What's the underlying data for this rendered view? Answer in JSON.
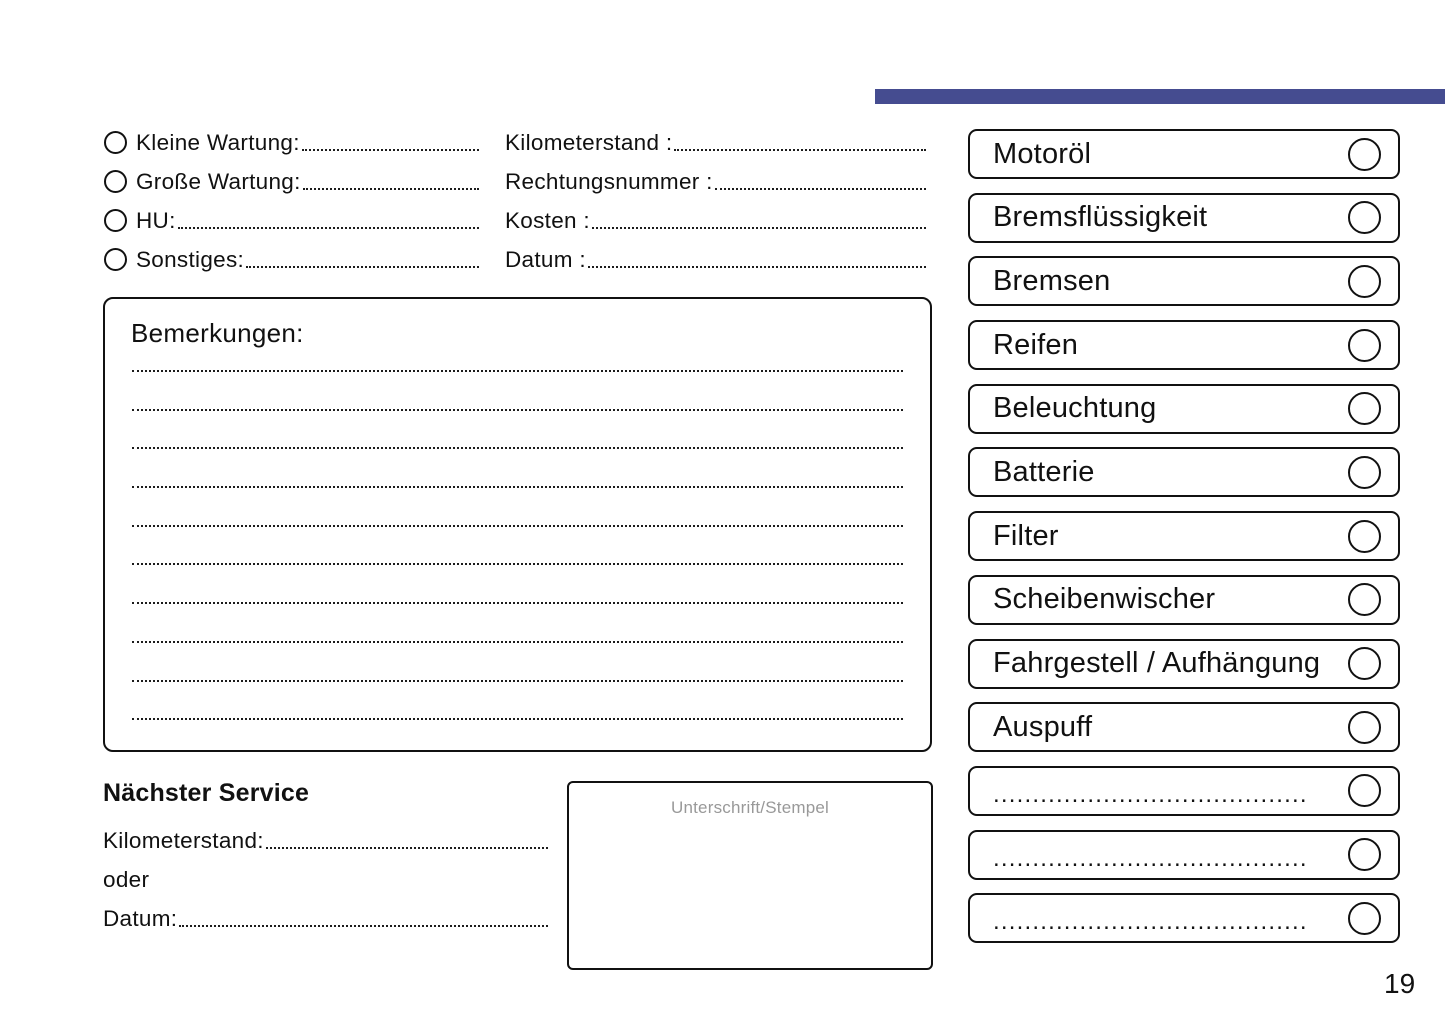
{
  "page": {
    "number": "19"
  },
  "colors": {
    "accent_bar": "#454C90",
    "signature_hint": "#999999"
  },
  "service_types": [
    {
      "label": "Kleine Wartung:"
    },
    {
      "label": "Große Wartung:"
    },
    {
      "label": "HU:"
    },
    {
      "label": "Sonstiges:"
    }
  ],
  "invoice_fields": [
    {
      "label": "Kilometerstand :"
    },
    {
      "label": "Rechtungsnummer :"
    },
    {
      "label": "Kosten :"
    },
    {
      "label": "Datum :"
    }
  ],
  "remarks": {
    "title": "Bemerkungen:",
    "line_count": 10
  },
  "next_service": {
    "title": "Nächster Service",
    "fields": [
      {
        "label": "Kilometerstand:",
        "has_line": true
      },
      {
        "label": "oder",
        "has_line": false
      },
      {
        "label": "Datum:",
        "has_line": true
      }
    ]
  },
  "signature": {
    "label": "Unterschrift/Stempel"
  },
  "checklist": {
    "items": [
      {
        "label": "Motoröl",
        "blank": false
      },
      {
        "label": "Bremsflüssigkeit",
        "blank": false
      },
      {
        "label": "Bremsen",
        "blank": false
      },
      {
        "label": "Reifen",
        "blank": false
      },
      {
        "label": "Beleuchtung",
        "blank": false
      },
      {
        "label": "Batterie",
        "blank": false
      },
      {
        "label": "Filter",
        "blank": false
      },
      {
        "label": "Scheibenwischer",
        "blank": false
      },
      {
        "label": "Fahrgestell / Aufhängung",
        "blank": false
      },
      {
        "label": "Auspuff",
        "blank": false
      },
      {
        "label": "........................................",
        "blank": true
      },
      {
        "label": "........................................",
        "blank": true
      },
      {
        "label": "........................................",
        "blank": true
      }
    ]
  }
}
